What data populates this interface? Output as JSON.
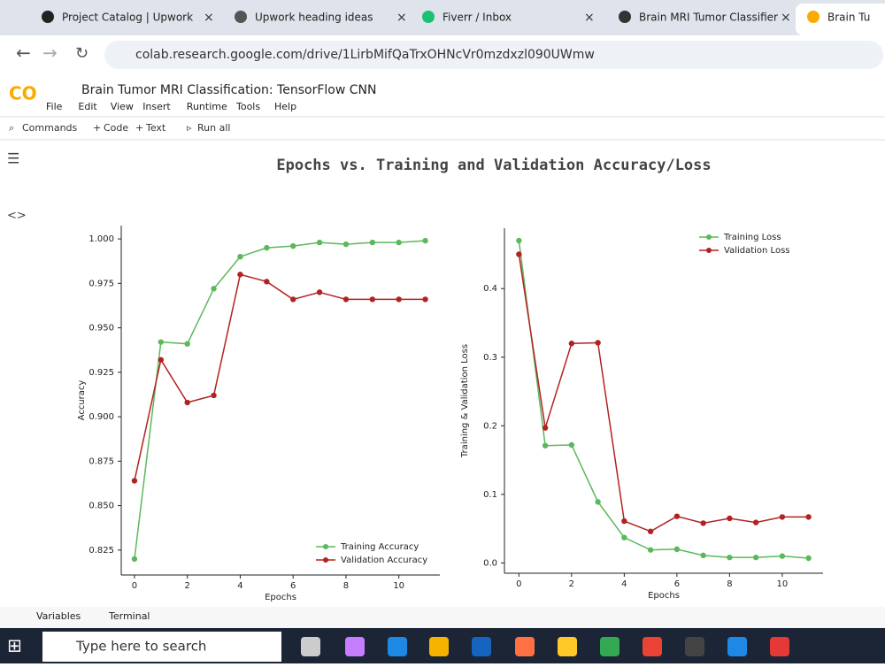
{
  "browser": {
    "tabs": [
      "Project Catalog | Upwork",
      "Upwork heading ideas",
      "Fiverr / Inbox",
      "Brain MRI Tumor Classifier",
      "Brain Tu"
    ],
    "url": "colab.research.google.com/drive/1LirbMifQaTrxOHNcVr0mzdxzl090UWmw"
  },
  "notebook": {
    "logo": "CO",
    "title": "Brain Tumor MRI Classification: TensorFlow CNN",
    "menu": [
      "File",
      "Edit",
      "View",
      "Insert",
      "Runtime",
      "Tools",
      "Help"
    ],
    "toolbar": [
      "Commands",
      "Code",
      "Text",
      "Run all"
    ],
    "status": [
      "Variables",
      "Terminal"
    ]
  },
  "taskbar": {
    "search": "Type here to search"
  },
  "figure_title": "Epochs vs. Training and Validation Accuracy/Loss",
  "chart_data": [
    {
      "type": "line",
      "x_label": "Epochs",
      "y_label": "Accuracy",
      "x": [
        0,
        1,
        2,
        3,
        4,
        5,
        6,
        7,
        8,
        9,
        10,
        11
      ],
      "series": [
        {
          "name": "Training Accuracy",
          "color": "#5cb85c",
          "values": [
            0.82,
            0.942,
            0.941,
            0.972,
            0.99,
            0.995,
            0.996,
            0.998,
            0.997,
            0.998,
            0.998,
            0.999
          ]
        },
        {
          "name": "Validation Accuracy",
          "color": "#b22222",
          "values": [
            0.864,
            0.932,
            0.908,
            0.912,
            0.98,
            0.976,
            0.966,
            0.97,
            0.966,
            0.966,
            0.966,
            0.966
          ]
        }
      ],
      "xlim": [
        -0.5,
        11.55
      ],
      "xticks": [
        0,
        2,
        4,
        6,
        8,
        10
      ],
      "ylim": [
        0.811,
        1.0075
      ],
      "yticks": [
        {
          "value": 0.825,
          "label": "0.825"
        },
        {
          "value": 0.85,
          "label": "0.850"
        },
        {
          "value": 0.875,
          "label": "0.875"
        },
        {
          "value": 0.9,
          "label": "0.900"
        },
        {
          "value": 0.925,
          "label": "0.925"
        },
        {
          "value": 0.95,
          "label": "0.950"
        },
        {
          "value": 0.975,
          "label": "0.975"
        },
        {
          "value": 1,
          "label": "1.000"
        }
      ],
      "legend": "lower right"
    },
    {
      "type": "line",
      "x_label": "Epochs",
      "y_label": "Training & Validation Loss",
      "x": [
        0,
        1,
        2,
        3,
        4,
        5,
        6,
        7,
        8,
        9,
        10,
        11
      ],
      "series": [
        {
          "name": "Training Loss",
          "color": "#5cb85c",
          "values": [
            0.47,
            0.171,
            0.172,
            0.089,
            0.037,
            0.019,
            0.02,
            0.011,
            0.008,
            0.008,
            0.01,
            0.007
          ]
        },
        {
          "name": "Validation Loss",
          "color": "#b22222",
          "values": [
            0.45,
            0.197,
            0.32,
            0.321,
            0.061,
            0.046,
            0.068,
            0.058,
            0.065,
            0.059,
            0.067,
            0.067
          ]
        }
      ],
      "xlim": [
        -0.55,
        11.55
      ],
      "xticks": [
        0,
        2,
        4,
        6,
        8,
        10
      ],
      "ylim": [
        -0.015,
        0.488
      ],
      "yticks": [
        {
          "value": 0,
          "label": "0.0"
        },
        0.1,
        0.2,
        0.3,
        0.4
      ],
      "legend": "upper right"
    }
  ]
}
